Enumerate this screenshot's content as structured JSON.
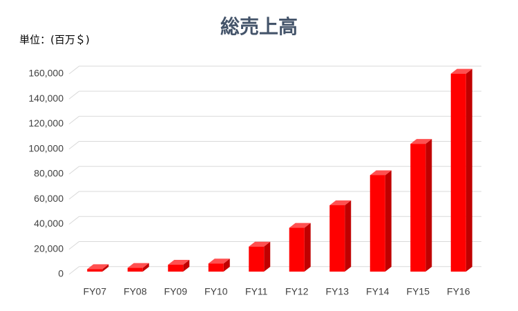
{
  "chart_data": {
    "type": "bar3d",
    "title": "総売上高",
    "unit_label": "単位：(百万＄)",
    "categories": [
      "FY07",
      "FY08",
      "FY09",
      "FY10",
      "FY11",
      "FY12",
      "FY13",
      "FY14",
      "FY15",
      "FY16"
    ],
    "values": [
      2000,
      3000,
      5500,
      6500,
      20000,
      35000,
      53000,
      77000,
      102000,
      158000
    ],
    "color": "#ff0000",
    "side_color": "#c00000",
    "top_color": "#ff5050",
    "ylim": [
      0,
      160000
    ],
    "yticks": [
      0,
      {
        "value": 20000,
        "label": "20,000"
      },
      {
        "value": 40000,
        "label": "40,000"
      },
      {
        "value": 60000,
        "label": "60,000"
      },
      {
        "value": 80000,
        "label": "80,000"
      },
      {
        "value": 100000,
        "label": "100,000"
      },
      {
        "value": 120000,
        "label": "120,000"
      },
      {
        "value": 140000,
        "label": "140,000"
      },
      {
        "value": 160000,
        "label": "160,000"
      }
    ],
    "grid": true
  }
}
